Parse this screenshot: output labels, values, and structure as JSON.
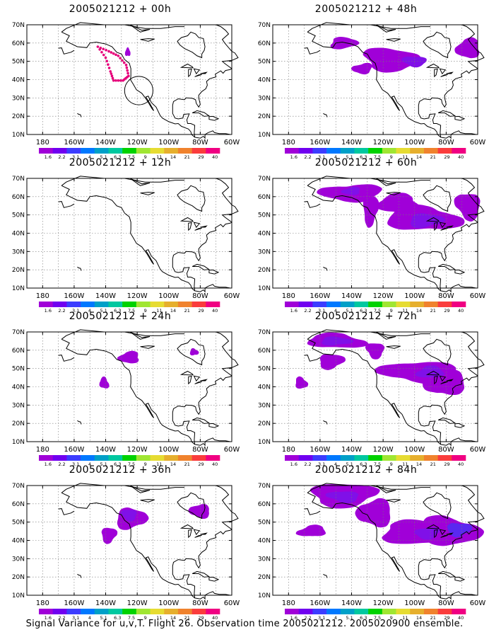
{
  "map_axes": {
    "lat_ticks": [
      "70N",
      "60N",
      "50N",
      "40N",
      "30N",
      "20N",
      "10N"
    ],
    "lon_ticks": [
      "180",
      "160W",
      "140W",
      "120W",
      "100W",
      "80W",
      "60W"
    ],
    "lon_range": [
      -190,
      -60
    ],
    "lat_range": [
      10,
      70
    ]
  },
  "colorbar": {
    "labels": [
      "1.6",
      "2.2",
      "3.1",
      "4",
      "5.1",
      "6.3",
      "7.5",
      "9",
      "11",
      "14",
      "21",
      "29",
      "40"
    ],
    "colors": [
      "#a000d8",
      "#7000f0",
      "#3c3cff",
      "#0078ff",
      "#00a0c8",
      "#00c8a0",
      "#00d200",
      "#a0e632",
      "#e6dc32",
      "#e6af2d",
      "#f0822d",
      "#fa3c3c",
      "#f00082"
    ]
  },
  "shade_colors": {
    "light": "#a000d8",
    "mid": "#8010e8",
    "dark": "#5a28f0",
    "pink_marker": "#e6007a"
  },
  "panels": [
    {
      "title": "2005021212 + 00h",
      "blobs": [
        {
          "lon": -126,
          "lat": 55,
          "rx": 1.5,
          "ry": 2.5,
          "level": "light"
        }
      ],
      "marker_route": true,
      "circle": {
        "lon": -119,
        "lat": 34,
        "r": 9
      }
    },
    {
      "title": "2005021212 + 48h",
      "blobs": [
        {
          "lon": -145,
          "lat": 60,
          "rx": 9,
          "ry": 3,
          "level": "light"
        },
        {
          "lon": -115,
          "lat": 51,
          "rx": 18,
          "ry": 6,
          "level": "light"
        },
        {
          "lon": -100,
          "lat": 50,
          "rx": 7,
          "ry": 3,
          "level": "mid"
        },
        {
          "lon": -133,
          "lat": 46,
          "rx": 6,
          "ry": 3,
          "level": "light"
        },
        {
          "lon": -66,
          "lat": 57,
          "rx": 8,
          "ry": 5,
          "level": "light"
        }
      ]
    },
    {
      "title": "2005021212 + 12h",
      "blobs": []
    },
    {
      "title": "2005021212 + 60h",
      "blobs": [
        {
          "lon": -140,
          "lat": 62,
          "rx": 18,
          "ry": 5,
          "level": "light"
        },
        {
          "lon": -140,
          "lat": 63,
          "rx": 6,
          "ry": 2,
          "level": "mid"
        },
        {
          "lon": -110,
          "lat": 56,
          "rx": 14,
          "ry": 5,
          "level": "light"
        },
        {
          "lon": -95,
          "lat": 48,
          "rx": 22,
          "ry": 7,
          "level": "light"
        },
        {
          "lon": -93,
          "lat": 47,
          "rx": 10,
          "ry": 4,
          "level": "mid"
        },
        {
          "lon": -128,
          "lat": 53,
          "rx": 5,
          "ry": 8,
          "level": "light"
        },
        {
          "lon": -66,
          "lat": 55,
          "rx": 8,
          "ry": 7,
          "level": "light"
        }
      ]
    },
    {
      "title": "2005021212 + 24h",
      "blobs": [
        {
          "lon": -125,
          "lat": 56,
          "rx": 7,
          "ry": 3,
          "level": "light"
        },
        {
          "lon": -141,
          "lat": 42,
          "rx": 3,
          "ry": 3,
          "level": "light"
        },
        {
          "lon": -84,
          "lat": 59,
          "rx": 2.5,
          "ry": 2,
          "level": "light"
        }
      ]
    },
    {
      "title": "2005021212 + 72h",
      "blobs": [
        {
          "lon": -150,
          "lat": 65,
          "rx": 18,
          "ry": 4,
          "level": "light"
        },
        {
          "lon": -150,
          "lat": 65,
          "rx": 9,
          "ry": 2.5,
          "level": "mid"
        },
        {
          "lon": -153,
          "lat": 54,
          "rx": 8,
          "ry": 4,
          "level": "light"
        },
        {
          "lon": -125,
          "lat": 60,
          "rx": 6,
          "ry": 4,
          "level": "light"
        },
        {
          "lon": -96,
          "lat": 48,
          "rx": 24,
          "ry": 6,
          "level": "light"
        },
        {
          "lon": -80,
          "lat": 42,
          "rx": 12,
          "ry": 7,
          "level": "light"
        },
        {
          "lon": -90,
          "lat": 48,
          "rx": 9,
          "ry": 3,
          "level": "mid"
        },
        {
          "lon": -172,
          "lat": 42,
          "rx": 4,
          "ry": 3,
          "level": "light"
        }
      ]
    },
    {
      "title": "2005021212 + 36h",
      "blobs": [
        {
          "lon": -124,
          "lat": 52,
          "rx": 9,
          "ry": 6,
          "level": "light"
        },
        {
          "lon": -138,
          "lat": 43,
          "rx": 5,
          "ry": 4,
          "level": "light"
        },
        {
          "lon": -125,
          "lat": 54,
          "rx": 5,
          "ry": 3,
          "level": "mid"
        },
        {
          "lon": -80,
          "lat": 56,
          "rx": 6,
          "ry": 4,
          "level": "light"
        }
      ]
    },
    {
      "title": "2005021212 + 84h",
      "blobs": [
        {
          "lon": -145,
          "lat": 65,
          "rx": 22,
          "ry": 6,
          "level": "light"
        },
        {
          "lon": -145,
          "lat": 64,
          "rx": 10,
          "ry": 3,
          "level": "mid"
        },
        {
          "lon": -125,
          "lat": 55,
          "rx": 10,
          "ry": 8,
          "level": "light"
        },
        {
          "lon": -165,
          "lat": 45,
          "rx": 9,
          "ry": 3,
          "level": "light"
        },
        {
          "lon": -100,
          "lat": 44,
          "rx": 22,
          "ry": 6,
          "level": "light"
        },
        {
          "lon": -78,
          "lat": 45,
          "rx": 18,
          "ry": 8,
          "level": "light"
        },
        {
          "lon": -72,
          "lat": 46,
          "rx": 7,
          "ry": 4,
          "level": "dark"
        },
        {
          "lon": -92,
          "lat": 44,
          "rx": 8,
          "ry": 3,
          "level": "mid"
        }
      ]
    }
  ],
  "footer": "Signal Variance for u,v,T. Flight 26. Observation time 2005021212. 2005020900 ensemble."
}
